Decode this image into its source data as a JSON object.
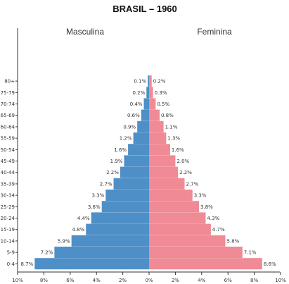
{
  "chart_data": {
    "type": "bar",
    "orientation": "horizontal",
    "layout": "population-pyramid",
    "title": "BRASIL – 1960",
    "left_label": "Masculina",
    "right_label": "Feminina",
    "categories": [
      "80+",
      "75-79",
      "70-74",
      "65-69",
      "60-64",
      "55-59",
      "50-54",
      "45-49",
      "40-44",
      "35-39",
      "30-34",
      "25-29",
      "20-24",
      "15-19",
      "10-14",
      "5-9",
      "0-4"
    ],
    "series": [
      {
        "name": "Masculina",
        "side": "left",
        "color": "#4f8fc7",
        "values": [
          0.1,
          0.2,
          0.4,
          0.6,
          0.9,
          1.2,
          1.6,
          1.9,
          2.2,
          2.7,
          3.3,
          3.6,
          4.4,
          4.8,
          5.9,
          7.2,
          8.7
        ],
        "labels": [
          "0.1%",
          "0.2%",
          "0.4%",
          "0.6%",
          "0.9%",
          "1.2%",
          "1.6%",
          "1.9%",
          "2.2%",
          "2.7%",
          "3.3%",
          "3.6%",
          "4.4%",
          "4.8%",
          "5.9%",
          "7.2%",
          "8.7%"
        ]
      },
      {
        "name": "Feminina",
        "side": "right",
        "color": "#f08a95",
        "values": [
          0.2,
          0.3,
          0.5,
          0.8,
          1.1,
          1.3,
          1.6,
          2.0,
          2.2,
          2.7,
          3.3,
          3.8,
          4.3,
          4.7,
          5.8,
          7.1,
          8.6
        ],
        "labels": [
          "0.2%",
          "0.3%",
          "0.5%",
          "0.8%",
          "1.1%",
          "1.3%",
          "1.6%",
          "2.0%",
          "2.2%",
          "2.7%",
          "3.3%",
          "3.8%",
          "4.3%",
          "4.7%",
          "5.8%",
          "7.1%",
          "8.6%"
        ]
      }
    ],
    "x_ticks": [
      -10,
      -8,
      -6,
      -4,
      -2,
      0,
      2,
      4,
      6,
      8,
      10
    ],
    "x_tick_labels": [
      "10%",
      "8%",
      "6%",
      "4%",
      "2%",
      "0%",
      "2%",
      "4%",
      "6%",
      "8%",
      "10%"
    ],
    "xlim": [
      -10,
      10
    ],
    "grid": false,
    "legend": "none"
  }
}
